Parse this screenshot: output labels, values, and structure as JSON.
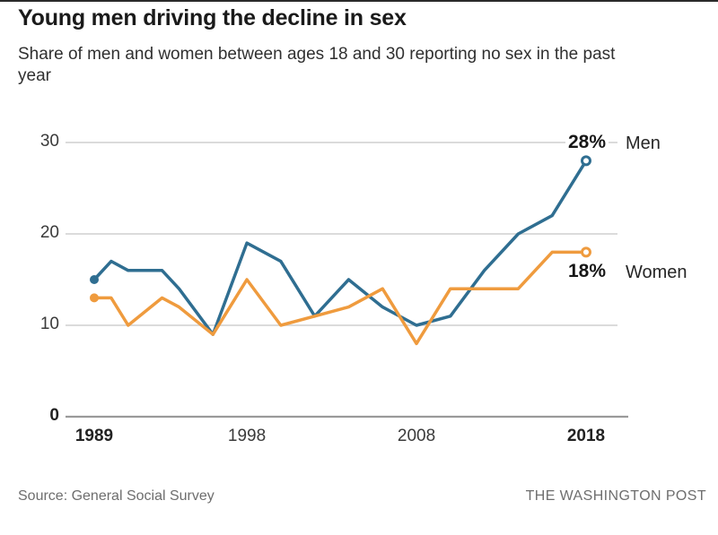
{
  "page": {
    "title": "Young men driving the decline in sex",
    "subtitle_line1": "Share of men and women between ages 18 and 30 reporting no sex in the past",
    "subtitle_line2": "year"
  },
  "footer": {
    "source": "Source: General Social Survey",
    "credit": "THE WASHINGTON POST"
  },
  "chart_data": {
    "type": "line",
    "title": "Young men driving the decline in sex",
    "subtitle": "Share of men and women between ages 18 and 30 reporting no sex in the past year",
    "x": [
      1989,
      1990,
      1991,
      1993,
      1994,
      1996,
      1998,
      2000,
      2002,
      2004,
      2006,
      2008,
      2010,
      2012,
      2014,
      2016,
      2018
    ],
    "series": [
      {
        "name": "Men",
        "color": "#2f6e91",
        "end_label": "28%",
        "values": [
          15,
          17,
          16,
          16,
          14,
          9,
          19,
          17,
          11,
          15,
          12,
          10,
          11,
          16,
          20,
          22,
          28
        ]
      },
      {
        "name": "Women",
        "color": "#ef9b3e",
        "end_label": "18%",
        "values": [
          13,
          13,
          10,
          13,
          12,
          9,
          15,
          10,
          11,
          12,
          14,
          8,
          14,
          14,
          14,
          18,
          18
        ]
      }
    ],
    "ylabel": "",
    "xlabel": "",
    "ylim": [
      0,
      30
    ],
    "xlim": [
      1989,
      2018
    ],
    "grid": "horizontal",
    "legend_position": "right-of-line-ends",
    "yticks": [
      {
        "value": 0,
        "bold": true
      },
      {
        "value": 10,
        "bold": false
      },
      {
        "value": 20,
        "bold": false
      },
      {
        "value": 30,
        "bold": false
      }
    ],
    "xticks": [
      {
        "year": 1989,
        "label": "1989",
        "bold": true
      },
      {
        "year": 1998,
        "label": "1998",
        "bold": false
      },
      {
        "year": 2008,
        "label": "2008",
        "bold": false
      },
      {
        "year": 2018,
        "label": "2018",
        "bold": true
      }
    ],
    "start_markers": "filled-dot",
    "end_markers": "open-circle"
  }
}
